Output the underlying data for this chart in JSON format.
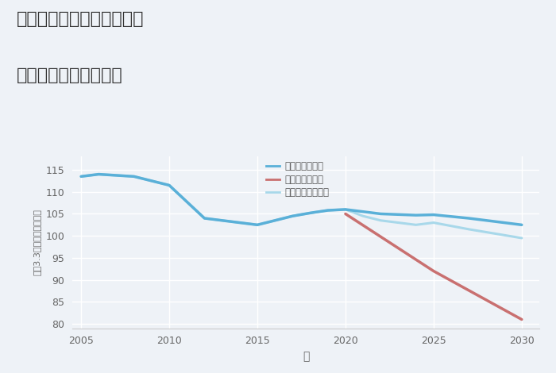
{
  "title_line1": "神奈川県平塚市富士見町の",
  "title_line2": "中古戸建ての価格推移",
  "xlabel": "年",
  "ylabel": "坪（3.3㎡）単価（万円）",
  "ylim": [
    79,
    118
  ],
  "xlim": [
    2004.5,
    2031
  ],
  "yticks": [
    80,
    85,
    90,
    95,
    100,
    105,
    110,
    115
  ],
  "xticks": [
    2005,
    2010,
    2015,
    2020,
    2025,
    2030
  ],
  "background_color": "#eef2f7",
  "plot_bg_color": "#eef2f7",
  "grid_color": "#ffffff",
  "good_scenario": {
    "label": "グッドシナリオ",
    "color": "#5ab0d8",
    "linewidth": 2.5,
    "x": [
      2005,
      2006,
      2008,
      2010,
      2012,
      2014,
      2015,
      2016,
      2017,
      2018,
      2019,
      2020,
      2021,
      2022,
      2024,
      2025,
      2027,
      2030
    ],
    "y": [
      113.5,
      114.0,
      113.5,
      111.5,
      104.0,
      103.0,
      102.5,
      103.5,
      104.5,
      105.2,
      105.8,
      106.0,
      105.5,
      105.0,
      104.7,
      104.8,
      104.0,
      102.5
    ]
  },
  "bad_scenario": {
    "label": "バッドシナリオ",
    "color": "#c97070",
    "linewidth": 2.5,
    "x": [
      2020,
      2025,
      2030
    ],
    "y": [
      105.0,
      92.0,
      81.0
    ]
  },
  "normal_scenario": {
    "label": "ノーマルシナリオ",
    "color": "#a8d8ea",
    "linewidth": 2.2,
    "x": [
      2005,
      2006,
      2008,
      2010,
      2012,
      2014,
      2015,
      2016,
      2017,
      2018,
      2019,
      2020,
      2021,
      2022,
      2024,
      2025,
      2027,
      2030
    ],
    "y": [
      113.5,
      114.0,
      113.5,
      111.5,
      104.0,
      103.0,
      102.5,
      103.5,
      104.5,
      105.2,
      105.8,
      106.0,
      104.5,
      103.5,
      102.5,
      103.0,
      101.5,
      99.5
    ]
  },
  "legend_labels": [
    "グッドシナリオ",
    "バッドシナリオ",
    "ノーマルシナリオ"
  ],
  "legend_colors": [
    "#5ab0d8",
    "#c97070",
    "#a8d8ea"
  ]
}
